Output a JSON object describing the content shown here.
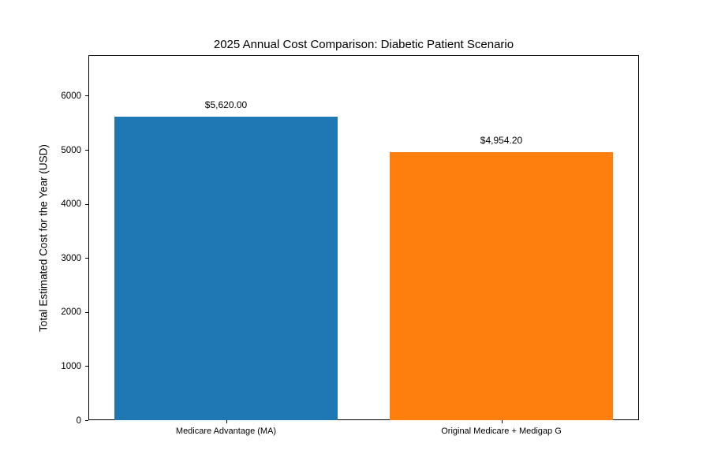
{
  "chart_data": {
    "type": "bar",
    "title": "2025 Annual Cost Comparison: Diabetic Patient Scenario",
    "xlabel": "",
    "ylabel": "Total Estimated Cost for the Year (USD)",
    "categories": [
      "Medicare Advantage (MA)",
      "Original Medicare + Medigap G"
    ],
    "values": [
      5620.0,
      4954.2
    ],
    "value_labels": [
      "$5,620.00",
      "$4,954.20"
    ],
    "bar_colors": [
      "#1f77b4",
      "#ff7f0e"
    ],
    "ylim": [
      0,
      6750
    ],
    "yticks": [
      0,
      1000,
      2000,
      3000,
      4000,
      5000,
      6000
    ],
    "grid": false,
    "legend": "none",
    "background_color": "#ffffff",
    "frame_color": "#000000",
    "text_color": "#000000"
  }
}
